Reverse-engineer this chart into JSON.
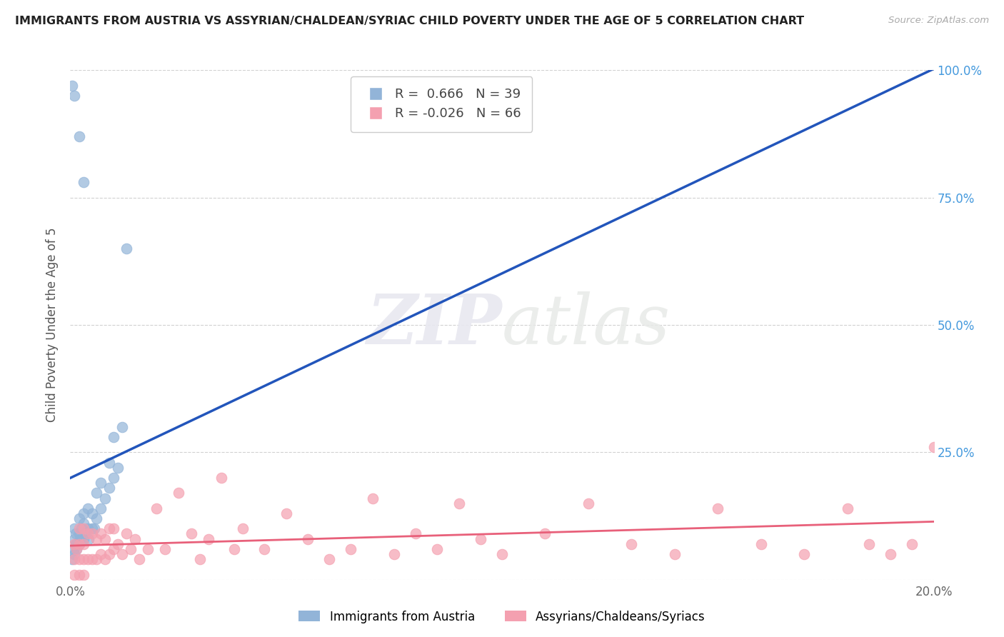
{
  "title": "IMMIGRANTS FROM AUSTRIA VS ASSYRIAN/CHALDEAN/SYRIAC CHILD POVERTY UNDER THE AGE OF 5 CORRELATION CHART",
  "source": "Source: ZipAtlas.com",
  "ylabel": "Child Poverty Under the Age of 5",
  "xlim": [
    0.0,
    0.2
  ],
  "ylim": [
    0.0,
    1.0
  ],
  "xtick_vals": [
    0.0,
    0.05,
    0.1,
    0.15,
    0.2
  ],
  "xtick_labels": [
    "0.0%",
    "",
    "",
    "",
    "20.0%"
  ],
  "ytick_vals": [
    0.0,
    0.25,
    0.5,
    0.75,
    1.0
  ],
  "ytick_labels_right": [
    "",
    "25.0%",
    "50.0%",
    "75.0%",
    "100.0%"
  ],
  "legend1_label": "Immigrants from Austria",
  "legend2_label": "Assyrians/Chaldeans/Syriacs",
  "R1": "0.666",
  "N1": "39",
  "R2": "-0.026",
  "N2": "66",
  "blue_color": "#92B4D8",
  "pink_color": "#F4A0B0",
  "blue_line_color": "#2255BB",
  "pink_line_color": "#E8607A",
  "watermark_zip": "ZIP",
  "watermark_atlas": "atlas",
  "blue_scatter_x": [
    0.0005,
    0.0007,
    0.001,
    0.001,
    0.001,
    0.0012,
    0.0013,
    0.0015,
    0.002,
    0.002,
    0.002,
    0.0022,
    0.0025,
    0.003,
    0.003,
    0.003,
    0.0035,
    0.004,
    0.004,
    0.0042,
    0.005,
    0.005,
    0.0055,
    0.006,
    0.006,
    0.007,
    0.007,
    0.008,
    0.009,
    0.009,
    0.01,
    0.01,
    0.011,
    0.012,
    0.013,
    0.0005,
    0.001,
    0.002,
    0.003
  ],
  "blue_scatter_y": [
    0.04,
    0.06,
    0.05,
    0.08,
    0.1,
    0.07,
    0.09,
    0.06,
    0.07,
    0.09,
    0.12,
    0.08,
    0.1,
    0.08,
    0.11,
    0.13,
    0.09,
    0.1,
    0.14,
    0.08,
    0.1,
    0.13,
    0.1,
    0.12,
    0.17,
    0.14,
    0.19,
    0.16,
    0.18,
    0.23,
    0.2,
    0.28,
    0.22,
    0.3,
    0.65,
    0.97,
    0.95,
    0.87,
    0.78
  ],
  "pink_scatter_x": [
    0.001,
    0.001,
    0.0015,
    0.002,
    0.002,
    0.002,
    0.003,
    0.003,
    0.003,
    0.004,
    0.004,
    0.005,
    0.005,
    0.006,
    0.006,
    0.007,
    0.007,
    0.008,
    0.008,
    0.009,
    0.009,
    0.01,
    0.01,
    0.011,
    0.012,
    0.013,
    0.014,
    0.015,
    0.016,
    0.018,
    0.02,
    0.022,
    0.025,
    0.028,
    0.03,
    0.032,
    0.035,
    0.038,
    0.04,
    0.045,
    0.05,
    0.055,
    0.06,
    0.065,
    0.07,
    0.075,
    0.08,
    0.085,
    0.09,
    0.095,
    0.1,
    0.11,
    0.12,
    0.13,
    0.14,
    0.15,
    0.16,
    0.17,
    0.18,
    0.185,
    0.19,
    0.195,
    0.2,
    0.001,
    0.002,
    0.003
  ],
  "pink_scatter_y": [
    0.04,
    0.07,
    0.06,
    0.04,
    0.07,
    0.1,
    0.04,
    0.07,
    0.1,
    0.04,
    0.09,
    0.04,
    0.09,
    0.04,
    0.08,
    0.05,
    0.09,
    0.04,
    0.08,
    0.05,
    0.1,
    0.06,
    0.1,
    0.07,
    0.05,
    0.09,
    0.06,
    0.08,
    0.04,
    0.06,
    0.14,
    0.06,
    0.17,
    0.09,
    0.04,
    0.08,
    0.2,
    0.06,
    0.1,
    0.06,
    0.13,
    0.08,
    0.04,
    0.06,
    0.16,
    0.05,
    0.09,
    0.06,
    0.15,
    0.08,
    0.05,
    0.09,
    0.15,
    0.07,
    0.05,
    0.14,
    0.07,
    0.05,
    0.14,
    0.07,
    0.05,
    0.07,
    0.26,
    0.01,
    0.01,
    0.01
  ]
}
